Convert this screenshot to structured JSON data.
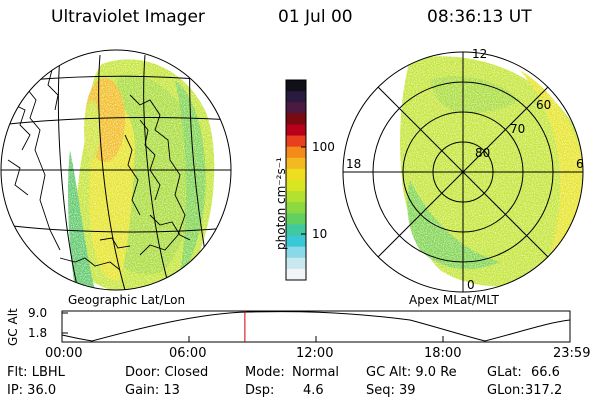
{
  "header": {
    "title": "Ultraviolet Imager",
    "date": "01 Jul 00",
    "time": "08:36:13 UT"
  },
  "colorbar": {
    "label": "photon cm⁻²s⁻¹",
    "ticks": [
      "100",
      "10"
    ],
    "colors": [
      "#101018",
      "#2a1a40",
      "#4a1a40",
      "#7a0a10",
      "#b8001a",
      "#e8401e",
      "#f38a1a",
      "#f2ba20",
      "#eedd20",
      "#d8e520",
      "#b4e030",
      "#8cd840",
      "#62d060",
      "#40c8a0",
      "#38c8d8",
      "#8ad8e8",
      "#cae8f0",
      "#f2f4f8"
    ]
  },
  "polar_plot": {
    "label": "Apex MLat/MLT",
    "lat_labels": [
      "80",
      "70",
      "60"
    ],
    "mlt_labels": [
      "12",
      "18",
      "6",
      "0"
    ]
  },
  "geo_plot": {
    "label": "Geographic Lat/Lon"
  },
  "altitude_plot": {
    "ylabel": "GC Alt",
    "yticks": [
      "9.0",
      "1.8"
    ],
    "xticks": [
      "00:00",
      "06:00",
      "12:00",
      "18:00",
      "23:59"
    ],
    "current_time_fraction": 0.36
  },
  "status": {
    "flt": "Flt: LBHL",
    "door": "Door: Closed",
    "mode_label": "Mode:",
    "mode_value": "Normal",
    "gc_alt": "GC Alt: 9.0 Re",
    "glat_label": "GLat:",
    "glat_value": "66.6",
    "ip": "IP: 36.0",
    "gain": "Gain: 13",
    "dsp_label": "Dsp:",
    "dsp_value": "4.6",
    "seq": "Seq: 39",
    "glon_label": "GLon:",
    "glon_value": "317.2"
  }
}
